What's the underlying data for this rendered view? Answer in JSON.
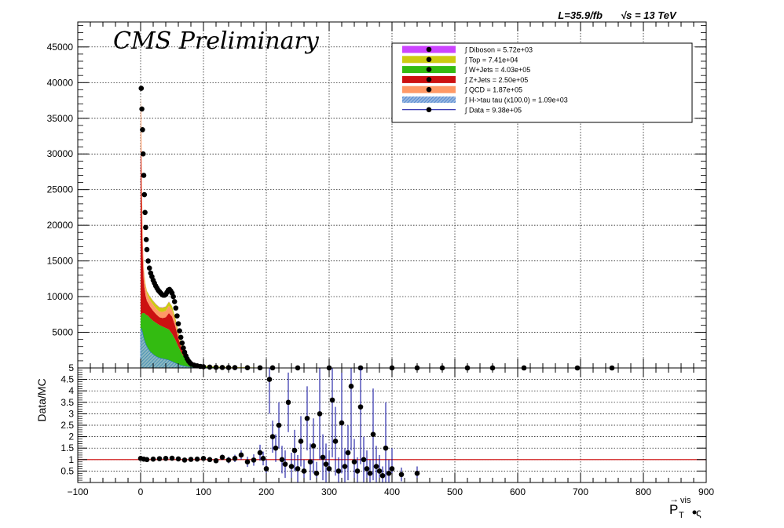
{
  "header": {
    "lumi_text": "L=35.9/fb",
    "energy_text": "√s = 13 TeV",
    "watermark": "CMS Preliminary"
  },
  "axes": {
    "x_title_main": "P",
    "x_title_sub": "T",
    "x_title_sup": "vis",
    "ratio_ylabel": "Data/MC"
  },
  "colors": {
    "diboson": "#cc44ff",
    "top": "#cccc11",
    "wjets": "#33bb11",
    "zjets": "#cc1111",
    "qcd": "#ff9966",
    "htautau": "#3377cc",
    "data": "#000000",
    "data_err": "#000099",
    "ratio_line": "#cc0000"
  },
  "legend": [
    {
      "key": "diboson",
      "label": "∫ Diboson = 5.72e+03"
    },
    {
      "key": "top",
      "label": "∫ Top = 7.41e+04"
    },
    {
      "key": "wjets",
      "label": "∫ W+Jets = 4.03e+05"
    },
    {
      "key": "zjets",
      "label": "∫ Z+Jets = 2.50e+05"
    },
    {
      "key": "qcd",
      "label": "∫ QCD = 1.87e+05"
    },
    {
      "key": "htautau",
      "label": "∫ H->tau tau (x100.0) = 1.09e+03"
    },
    {
      "key": "data",
      "label": "∫ Data = 9.38e+05"
    }
  ],
  "chart_data": [
    {
      "type": "area",
      "panel": "main",
      "xlim": [
        -100,
        900
      ],
      "ylim": [
        0,
        48500
      ],
      "x_ticks": [
        -100,
        0,
        100,
        200,
        300,
        400,
        500,
        600,
        700,
        800,
        900
      ],
      "y_ticks": [
        5000,
        10000,
        15000,
        20000,
        25000,
        30000,
        35000,
        40000,
        45000
      ],
      "grid": true,
      "legend_position": "top-right",
      "x": [
        0,
        1,
        2,
        3,
        4,
        5,
        6,
        8,
        10,
        12,
        15,
        20,
        25,
        30,
        35,
        40,
        45,
        50,
        55,
        60,
        65,
        70,
        75,
        80,
        90,
        100,
        120,
        150,
        200,
        300,
        400,
        500,
        600,
        700,
        800,
        900
      ],
      "series": [
        {
          "name": "W+Jets",
          "key": "wjets",
          "values": [
            7000,
            7500,
            7600,
            7700,
            7700,
            7700,
            7700,
            7500,
            7400,
            7300,
            7000,
            6600,
            6300,
            6000,
            5800,
            5600,
            5400,
            4800,
            4000,
            3000,
            2100,
            1400,
            900,
            600,
            300,
            200,
            100,
            60,
            30,
            10,
            5,
            3,
            2,
            1,
            1,
            0
          ]
        },
        {
          "name": "Z+Jets",
          "key": "zjets",
          "values": [
            24000,
            22000,
            14000,
            9500,
            6500,
            4500,
            3600,
            2600,
            2000,
            1800,
            1600,
            1400,
            1200,
            1100,
            1200,
            1500,
            2300,
            2400,
            1900,
            1200,
            600,
            300,
            150,
            80,
            40,
            20,
            10,
            5,
            2,
            1,
            0,
            0,
            0,
            0,
            0,
            0
          ]
        },
        {
          "name": "QCD",
          "key": "qcd",
          "values": [
            7000,
            6500,
            4000,
            2800,
            2200,
            1800,
            1500,
            1200,
            1000,
            950,
            900,
            850,
            800,
            800,
            850,
            900,
            1000,
            900,
            700,
            400,
            200,
            100,
            50,
            25,
            10,
            5,
            3,
            1,
            0,
            0,
            0,
            0,
            0,
            0,
            0,
            0
          ]
        },
        {
          "name": "Top",
          "key": "top",
          "values": [
            50,
            80,
            120,
            160,
            200,
            240,
            280,
            330,
            380,
            420,
            480,
            540,
            580,
            600,
            600,
            600,
            580,
            550,
            500,
            430,
            370,
            320,
            270,
            230,
            170,
            120,
            80,
            40,
            10,
            3,
            1,
            0,
            0,
            0,
            0,
            0
          ]
        },
        {
          "name": "Diboson",
          "key": "diboson",
          "values": [
            5,
            8,
            10,
            12,
            15,
            18,
            20,
            22,
            25,
            28,
            30,
            33,
            35,
            36,
            36,
            35,
            33,
            31,
            29,
            26,
            24,
            22,
            20,
            18,
            14,
            10,
            6,
            3,
            1,
            0,
            0,
            0,
            0,
            0,
            0,
            0
          ]
        },
        {
          "name": "H->tau tau (x100.0)",
          "key": "htautau",
          "values": [
            4800,
            5600,
            5300,
            5000,
            4600,
            4200,
            3900,
            3400,
            3000,
            2700,
            2300,
            1900,
            1600,
            1400,
            1300,
            1200,
            1100,
            900,
            700,
            500,
            350,
            250,
            170,
            110,
            60,
            35,
            15,
            5,
            1,
            0,
            0,
            0,
            0,
            0,
            0,
            0
          ]
        }
      ],
      "data": {
        "x": [
          1,
          2,
          3,
          4,
          5,
          6,
          7,
          8,
          9,
          10,
          12,
          14,
          16,
          18,
          20,
          22,
          24,
          26,
          28,
          30,
          32,
          34,
          36,
          38,
          40,
          42,
          44,
          46,
          48,
          50,
          52,
          54,
          56,
          58,
          60,
          62,
          64,
          66,
          68,
          70,
          72,
          74,
          76,
          78,
          80,
          85,
          90,
          95,
          100,
          110,
          120,
          130,
          140,
          150,
          170,
          190,
          210,
          250,
          300,
          350,
          400,
          440,
          480,
          520,
          560,
          610,
          695,
          750
        ],
        "y": [
          39200,
          36300,
          33400,
          30000,
          27000,
          24300,
          21800,
          19700,
          18000,
          16600,
          15000,
          14000,
          13300,
          12800,
          12300,
          11900,
          11500,
          11200,
          10900,
          10700,
          10500,
          10300,
          10200,
          10200,
          10300,
          10600,
          10900,
          11000,
          10800,
          10500,
          10000,
          9300,
          8400,
          7300,
          6200,
          5200,
          4300,
          3500,
          2800,
          2200,
          1700,
          1300,
          1000,
          780,
          600,
          400,
          300,
          220,
          170,
          120,
          90,
          70,
          55,
          45,
          30,
          22,
          16,
          10,
          7,
          5,
          4,
          3,
          3,
          2,
          2,
          2,
          1,
          1
        ]
      }
    },
    {
      "type": "scatter",
      "panel": "ratio",
      "xlim": [
        -100,
        900
      ],
      "ylim": [
        0,
        5
      ],
      "x_ticks": [
        -100,
        0,
        100,
        200,
        300,
        400,
        500,
        600,
        700,
        800,
        900
      ],
      "x_tick_labels": [
        "−100",
        "0",
        "100",
        "200",
        "300",
        "400",
        "500",
        "600",
        "700",
        "800",
        "900"
      ],
      "y_ticks": [
        0.5,
        1,
        1.5,
        2,
        2.5,
        3,
        3.5,
        4,
        4.5,
        5
      ],
      "y_tick_labels": [
        "0.5",
        "1",
        "1.5",
        "2",
        "2.5",
        "3",
        "3.5",
        "4",
        "4.5",
        "5"
      ],
      "reference_line": 1.0,
      "grid": true,
      "x": [
        0,
        5,
        10,
        20,
        30,
        40,
        50,
        60,
        70,
        80,
        90,
        100,
        110,
        120,
        130,
        140,
        150,
        160,
        170,
        180,
        190,
        195,
        200,
        205,
        210,
        215,
        220,
        225,
        230,
        235,
        240,
        245,
        250,
        255,
        260,
        265,
        270,
        275,
        280,
        285,
        290,
        295,
        300,
        305,
        310,
        315,
        320,
        325,
        330,
        335,
        340,
        345,
        350,
        355,
        360,
        365,
        370,
        375,
        380,
        385,
        390,
        395,
        400,
        415,
        440
      ],
      "y": [
        1.05,
        1.02,
        1.0,
        1.02,
        1.04,
        1.05,
        1.06,
        1.03,
        0.98,
        1.01,
        1.02,
        1.05,
        1.0,
        0.95,
        1.1,
        0.98,
        1.05,
        1.2,
        0.9,
        0.98,
        1.3,
        1.05,
        0.6,
        4.5,
        2.0,
        1.5,
        2.5,
        1.0,
        0.8,
        3.5,
        0.7,
        1.4,
        0.6,
        1.8,
        0.5,
        2.8,
        0.9,
        1.6,
        0.4,
        3.0,
        1.1,
        0.8,
        0.6,
        3.6,
        1.8,
        0.5,
        2.6,
        0.7,
        1.3,
        4.2,
        0.9,
        0.5,
        3.3,
        1.0,
        0.6,
        0.4,
        2.1,
        0.7,
        0.5,
        0.3,
        1.5,
        0.4,
        0.6,
        0.35,
        0.4
      ],
      "yerr": [
        0.02,
        0.02,
        0.02,
        0.02,
        0.02,
        0.02,
        0.02,
        0.03,
        0.04,
        0.05,
        0.06,
        0.07,
        0.09,
        0.1,
        0.12,
        0.14,
        0.16,
        0.2,
        0.22,
        0.25,
        0.35,
        0.3,
        0.4,
        1.5,
        0.7,
        0.6,
        1.0,
        0.6,
        0.6,
        1.3,
        0.6,
        0.9,
        0.6,
        1.1,
        0.5,
        1.4,
        0.8,
        1.2,
        0.5,
        2.0,
        1.0,
        0.9,
        0.8,
        2.5,
        1.5,
        0.6,
        2.2,
        0.8,
        1.2,
        2.8,
        1.0,
        0.6,
        2.5,
        1.0,
        0.8,
        0.6,
        2.0,
        0.9,
        0.7,
        0.4,
        2.0,
        0.6,
        0.9,
        0.3,
        0.3
      ]
    }
  ]
}
